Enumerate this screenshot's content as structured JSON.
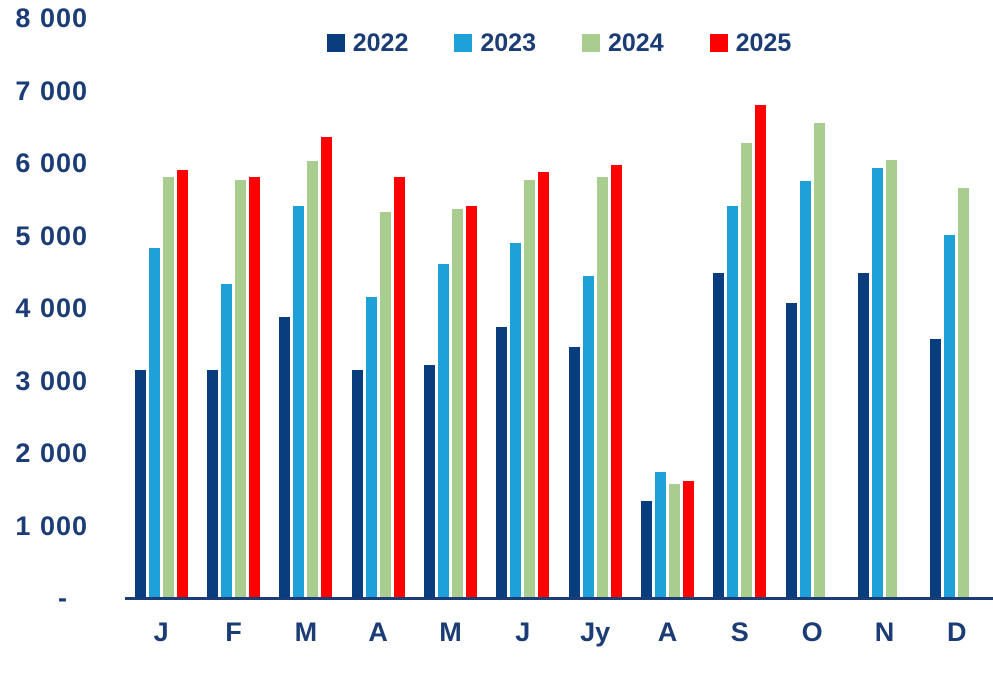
{
  "chart_data": {
    "type": "bar",
    "title": "",
    "xlabel": "",
    "ylabel": "",
    "ylim": [
      0,
      8000
    ],
    "grid": false,
    "legend_position": "top-center",
    "text_color": "#1B3C74",
    "axis_color": "#1B3C74",
    "categories": [
      "J",
      "F",
      "M",
      "A",
      "M",
      "J",
      "Jy",
      "A",
      "S",
      "O",
      "N",
      "D"
    ],
    "y_ticks": [
      {
        "label": "8 000",
        "value": 8000
      },
      {
        "label": "7 000",
        "value": 7000
      },
      {
        "label": "6 000",
        "value": 6000
      },
      {
        "label": "5 000",
        "value": 5000
      },
      {
        "label": "4 000",
        "value": 4000
      },
      {
        "label": "3 000",
        "value": 3000
      },
      {
        "label": "2 000",
        "value": 2000
      },
      {
        "label": "1 000",
        "value": 1000
      },
      {
        "label": "-",
        "value": 0
      }
    ],
    "series": [
      {
        "name": "2022",
        "color": "#0A3D7D",
        "values": [
          3150,
          3150,
          3880,
          3150,
          3210,
          3740,
          3460,
          1340,
          4480,
          4070,
          4480,
          3570
        ]
      },
      {
        "name": "2023",
        "color": "#1EA1D7",
        "values": [
          4830,
          4330,
          5410,
          4150,
          4610,
          4890,
          4440,
          1740,
          5410,
          5750,
          5930,
          5010
        ]
      },
      {
        "name": "2024",
        "color": "#A8CD8F",
        "values": [
          5810,
          5770,
          6030,
          5330,
          5360,
          5770,
          5810,
          1570,
          6280,
          6550,
          6040,
          5660
        ]
      },
      {
        "name": "2025",
        "color": "#FE0000",
        "values": [
          5910,
          5800,
          6360,
          5810,
          5410,
          5880,
          5970,
          1610,
          6800,
          null,
          null,
          null
        ]
      }
    ]
  }
}
